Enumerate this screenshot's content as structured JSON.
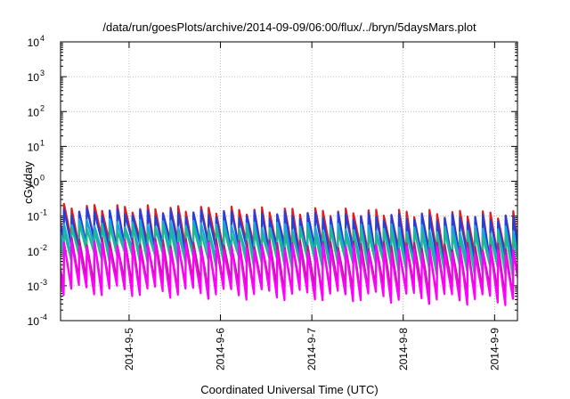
{
  "chart_data": {
    "type": "line",
    "title": "/data/run/goesPlots/archive/2014-09-09/06:00/flux/../bryn/5daysMars.plot",
    "xlabel": "Coordinated Universal Time (UTC)",
    "ylabel": "cGy/day",
    "y_scale": "log",
    "ylim": [
      0.0001,
      10000
    ],
    "y_ticks": [
      {
        "base": "10",
        "exp": "-4",
        "value": 0.0001
      },
      {
        "base": "10",
        "exp": "-3",
        "value": 0.001
      },
      {
        "base": "10",
        "exp": "-2",
        "value": 0.01
      },
      {
        "base": "10",
        "exp": "-1",
        "value": 0.1
      },
      {
        "base": "10",
        "exp": "0",
        "value": 1
      },
      {
        "base": "10",
        "exp": "1",
        "value": 10
      },
      {
        "base": "10",
        "exp": "2",
        "value": 100
      },
      {
        "base": "10",
        "exp": "3",
        "value": 1000
      },
      {
        "base": "10",
        "exp": "4",
        "value": 10000
      }
    ],
    "xlim": [
      "2014-09-04T06:00",
      "2014-09-09T06:00"
    ],
    "x_ticks": [
      {
        "label": "2014-9-5",
        "value": "2014-09-05T00:00"
      },
      {
        "label": "2014-9-6",
        "value": "2014-09-06T00:00"
      },
      {
        "label": "2014-9-7",
        "value": "2014-09-07T00:00"
      },
      {
        "label": "2014-9-8",
        "value": "2014-09-08T00:00"
      },
      {
        "label": "2014-9-9",
        "value": "2014-09-09T00:00"
      }
    ],
    "grid": true,
    "legend": false,
    "period_hours": 2,
    "series": [
      {
        "color": "#e41a1c",
        "start_peak": 0.18,
        "end_peak": 0.11,
        "start_min": 0.02,
        "end_min": 0.006
      },
      {
        "color": "#2040e0",
        "start_peak": 0.14,
        "end_peak": 0.085,
        "start_min": 0.017,
        "end_min": 0.005
      },
      {
        "color": "#18a8d8",
        "start_peak": 0.07,
        "end_peak": 0.04,
        "start_min": 0.011,
        "end_min": 0.0035
      },
      {
        "color": "#20b890",
        "start_peak": 0.05,
        "end_peak": 0.03,
        "start_min": 0.008,
        "end_min": 0.0025
      },
      {
        "color": "#b02080",
        "start_peak": 0.02,
        "end_peak": 0.013,
        "start_min": 0.0012,
        "end_min": 0.0006
      },
      {
        "color": "#ff00ff",
        "start_peak": 0.016,
        "end_peak": 0.01,
        "start_min": 0.0008,
        "end_min": 0.0004
      }
    ]
  }
}
